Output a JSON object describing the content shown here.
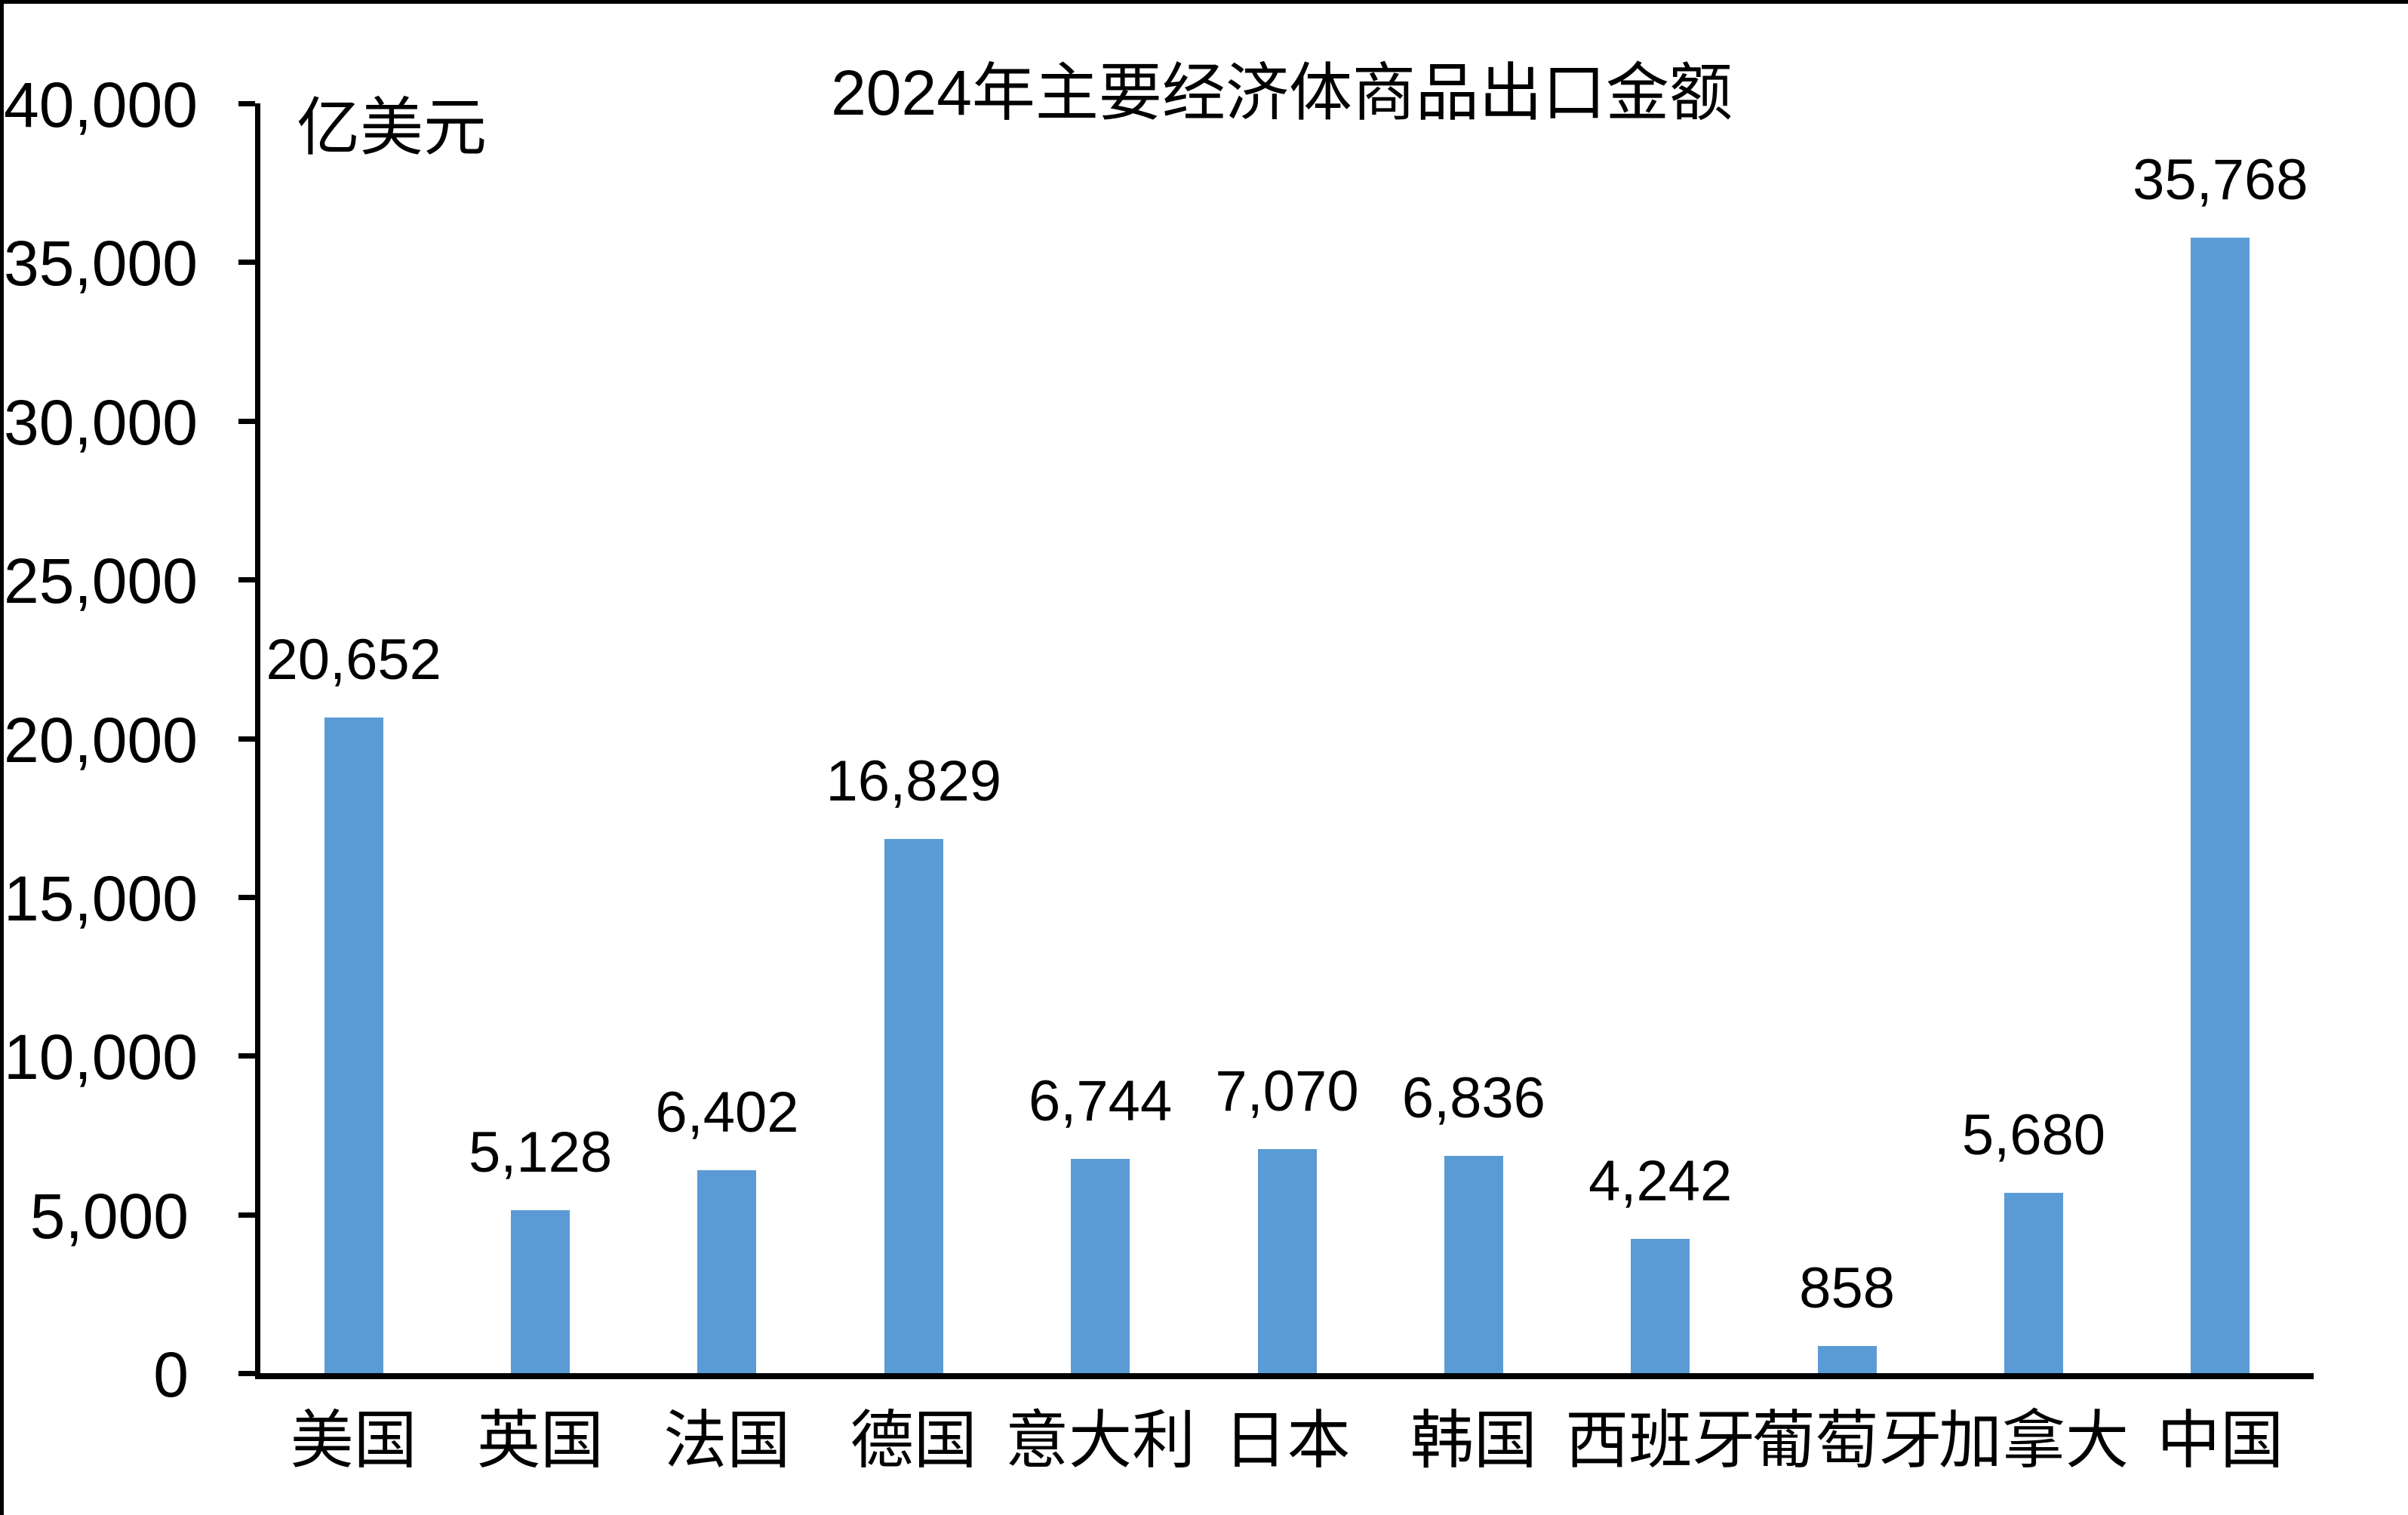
{
  "chart_data": {
    "type": "bar",
    "title": "2024年主要经济体商品出口金额",
    "unit_label": "亿美元",
    "categories": [
      "美国",
      "英国",
      "法国",
      "德国",
      "意大利",
      "日本",
      "韩国",
      "西班牙",
      "葡萄牙",
      "加拿大",
      "中国"
    ],
    "values": [
      20652,
      5128,
      6402,
      16829,
      6744,
      7070,
      6836,
      4242,
      858,
      5680,
      35768
    ],
    "data_labels": [
      "20,652",
      "5,128",
      "6,402",
      "16,829",
      "6,744",
      "7,070",
      "6,836",
      "4,242",
      "858",
      "5,680",
      "35,768"
    ],
    "y_ticks": [
      {
        "value": 0,
        "label": "0"
      },
      {
        "value": 5000,
        "label": "5,000"
      },
      {
        "value": 10000,
        "label": "10,000"
      },
      {
        "value": 15000,
        "label": "15,000"
      },
      {
        "value": 20000,
        "label": "20,000"
      },
      {
        "value": 25000,
        "label": "25,000"
      },
      {
        "value": 30000,
        "label": "30,000"
      },
      {
        "value": 35000,
        "label": "35,000"
      },
      {
        "value": 40000,
        "label": "40,000"
      }
    ],
    "ylim": [
      0,
      40000
    ],
    "bar_color": "#5B9BD5",
    "axis_color": "#000000",
    "text_color": "#000000",
    "grid": "off",
    "legend": "none"
  }
}
